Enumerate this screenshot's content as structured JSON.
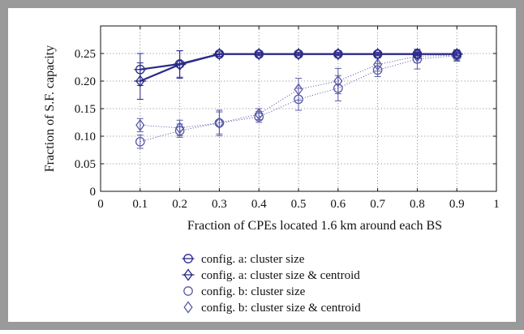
{
  "chart_data": {
    "type": "line",
    "title": "",
    "xlabel": "Fraction of CPEs located 1.6 km around each BS",
    "ylabel": "Fraction of S.F. capacity",
    "xlim": [
      0,
      1
    ],
    "ylim": [
      0,
      0.3
    ],
    "xticks": [
      "0",
      "0.1",
      "0.2",
      "0.3",
      "0.4",
      "0.5",
      "0.6",
      "0.7",
      "0.8",
      "0.9",
      "1"
    ],
    "yticks": [
      "0",
      "0.05",
      "0.10",
      "0.15",
      "0.20",
      "0.25"
    ],
    "grid": true,
    "legend_position": "below",
    "x": [
      0.1,
      0.2,
      0.3,
      0.4,
      0.5,
      0.6,
      0.7,
      0.8,
      0.9
    ],
    "series": [
      {
        "name": "config. a: cluster size",
        "marker": "circle-with-line",
        "line": "solid",
        "color": "#2a2a8a",
        "values": [
          0.221,
          0.231,
          0.249,
          0.249,
          0.249,
          0.249,
          0.249,
          0.249,
          0.249
        ],
        "err": [
          0.029,
          0.024,
          0.004,
          0.003,
          0.003,
          0.003,
          0.003,
          0.003,
          0.003
        ]
      },
      {
        "name": "config. a: cluster size & centroid",
        "marker": "diamond-with-line",
        "line": "solid",
        "color": "#2a2a8a",
        "values": [
          0.2,
          0.23,
          0.249,
          0.249,
          0.249,
          0.249,
          0.249,
          0.249,
          0.249
        ],
        "err": [
          0.033,
          0.025,
          0.004,
          0.003,
          0.003,
          0.003,
          0.003,
          0.003,
          0.003
        ]
      },
      {
        "name": "config. b: cluster size",
        "marker": "circle",
        "line": "dotted",
        "color": "#5a5aa8",
        "values": [
          0.09,
          0.11,
          0.124,
          0.135,
          0.167,
          0.187,
          0.22,
          0.24,
          0.246
        ],
        "err": [
          0.012,
          0.012,
          0.023,
          0.01,
          0.02,
          0.023,
          0.012,
          0.018,
          0.01
        ]
      },
      {
        "name": "config. b: cluster size & centroid",
        "marker": "diamond",
        "line": "dotted",
        "color": "#5a5aa8",
        "values": [
          0.12,
          0.115,
          0.124,
          0.14,
          0.185,
          0.2,
          0.23,
          0.245,
          0.247
        ],
        "err": [
          0.012,
          0.014,
          0.02,
          0.01,
          0.02,
          0.023,
          0.012,
          0.012,
          0.01
        ]
      }
    ]
  }
}
